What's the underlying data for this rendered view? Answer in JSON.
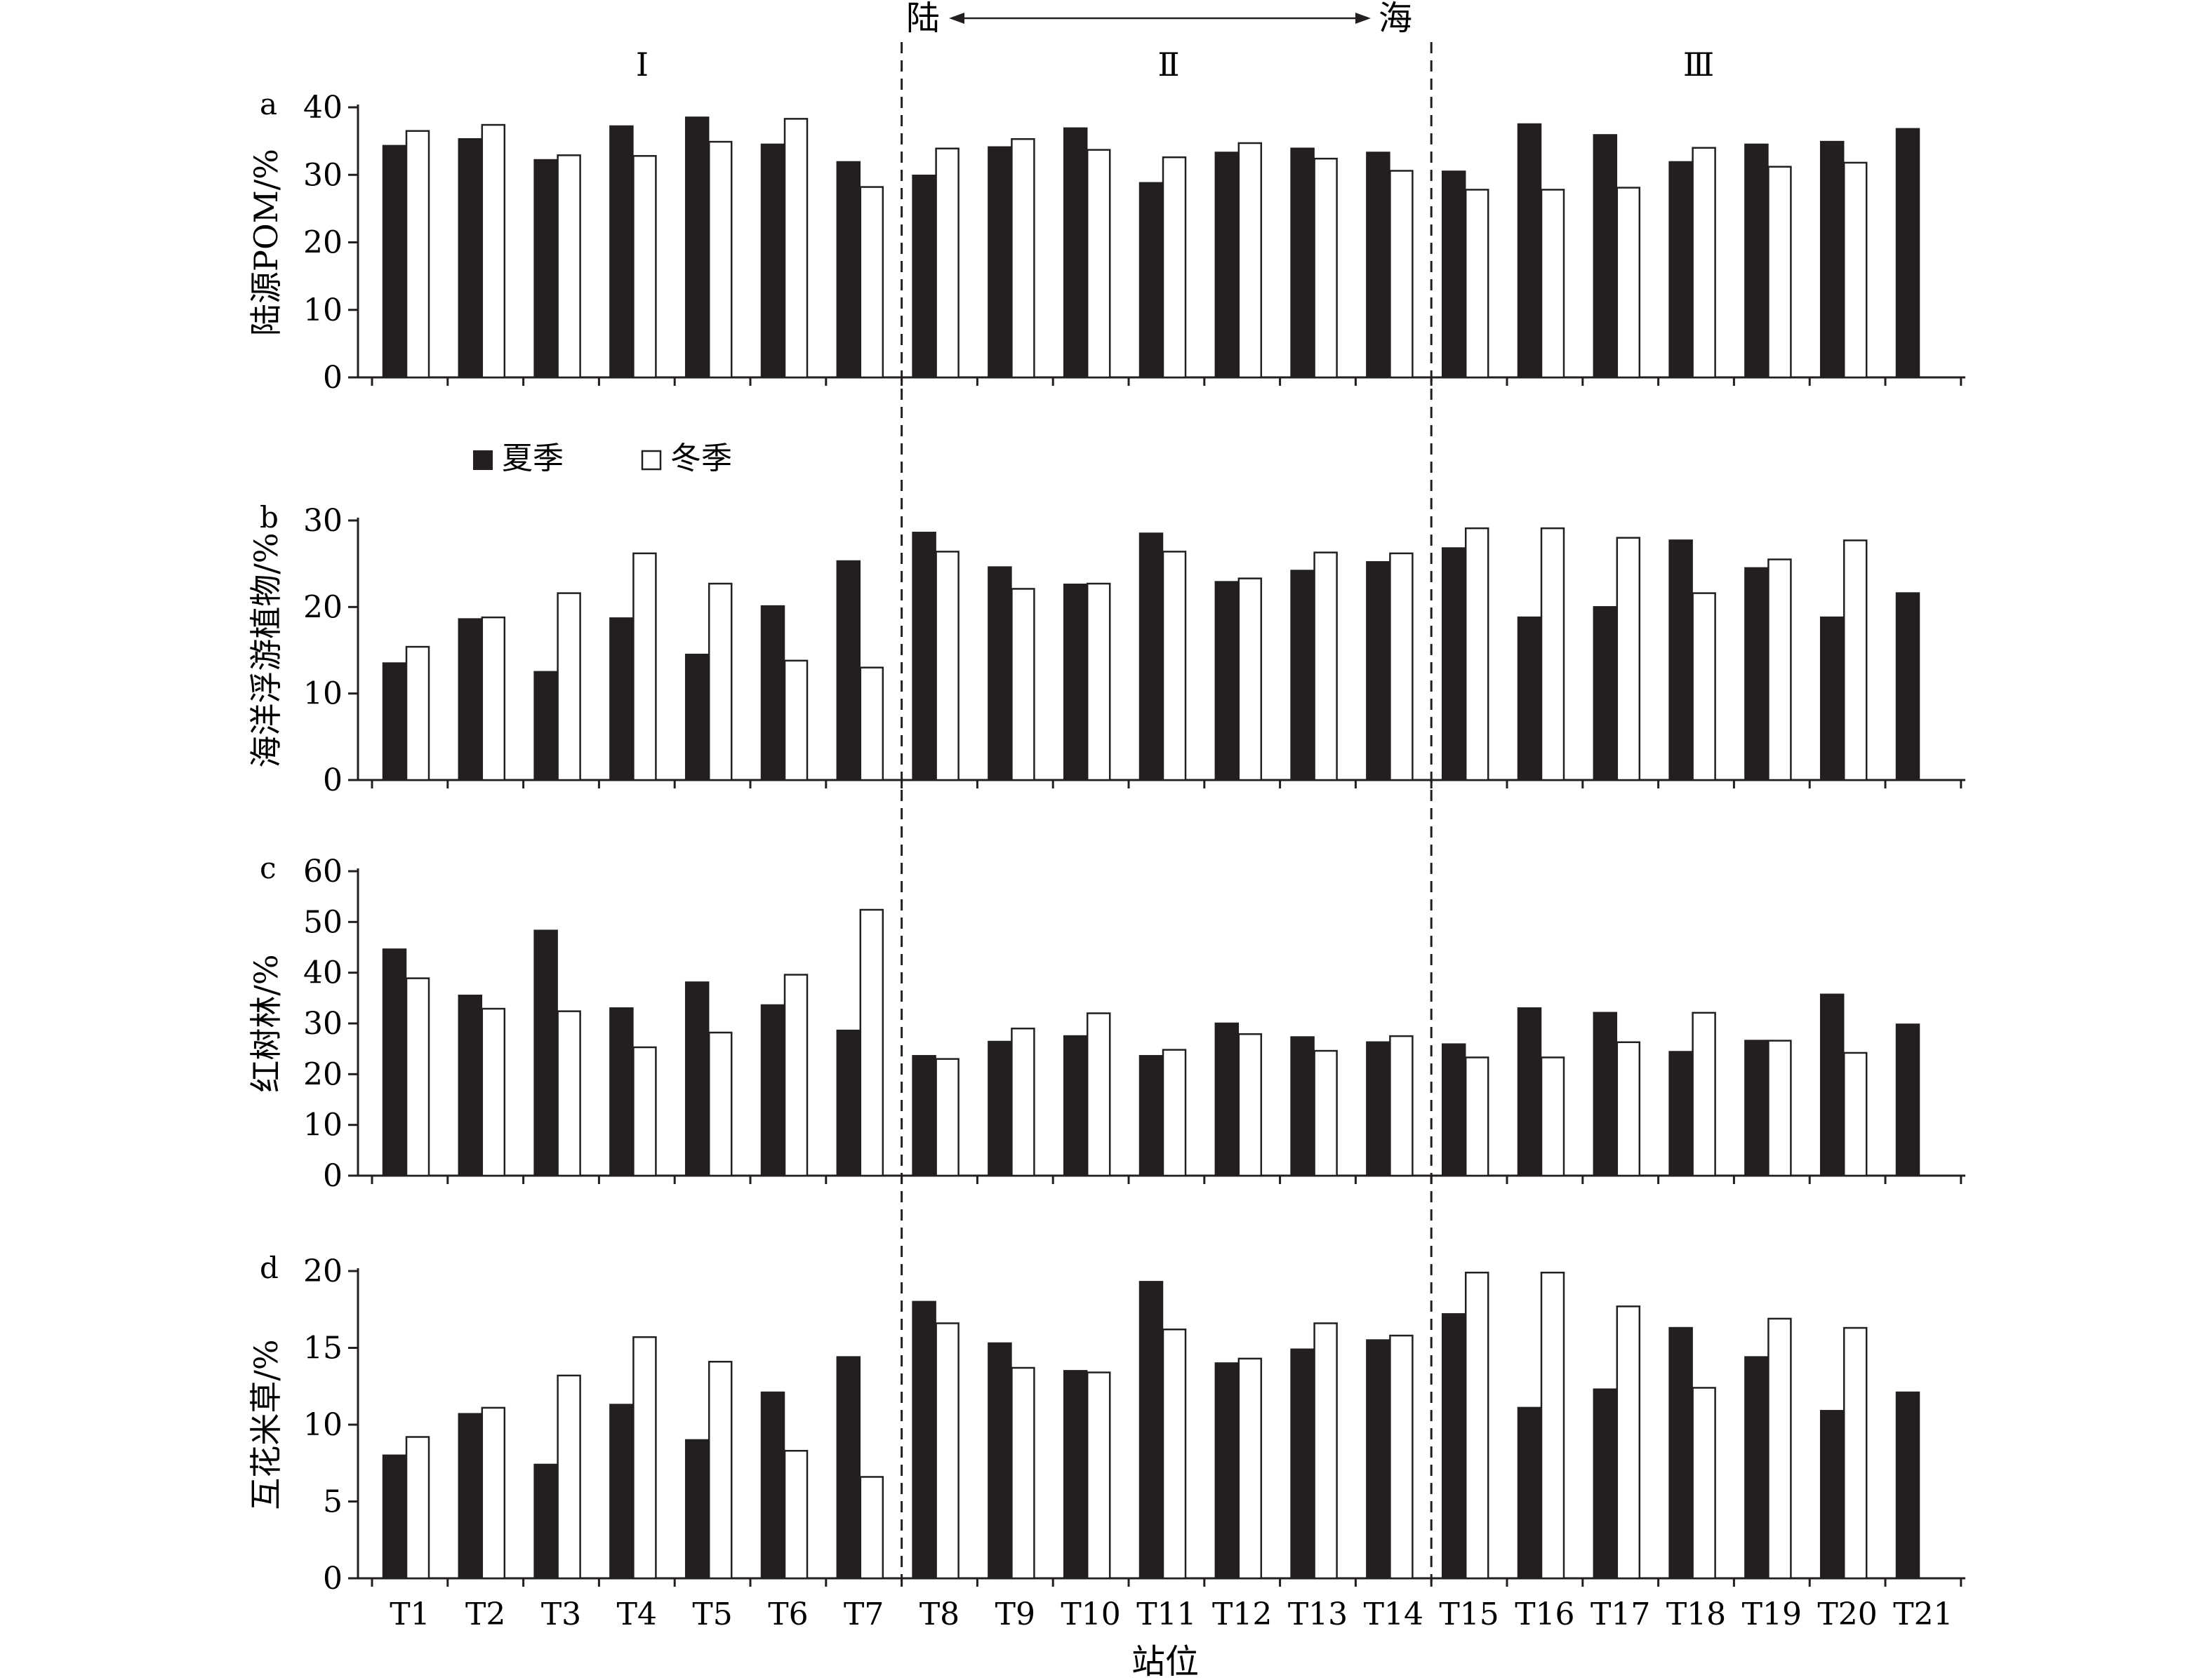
{
  "figure": {
    "x_axis_label": "站位",
    "land_label": "陆",
    "sea_label": "海",
    "zones": [
      "Ⅰ",
      "Ⅱ",
      "Ⅲ"
    ],
    "legend": [
      "夏季",
      "冬季"
    ]
  },
  "chart_data": [
    {
      "type": "bar",
      "panel_letter": "a",
      "ylabel": "陆源POM/%",
      "ylim": [
        0,
        40
      ],
      "yticks": [
        0,
        10,
        20,
        30,
        40
      ],
      "categories": [
        "T1",
        "T2",
        "T3",
        "T4",
        "T5",
        "T6",
        "T7",
        "T8",
        "T9",
        "T10",
        "T11",
        "T12",
        "T13",
        "T14",
        "T15",
        "T16",
        "T17",
        "T18",
        "T19",
        "T20",
        "T21"
      ],
      "series": [
        {
          "name": "夏季",
          "color": "#231f20",
          "values": [
            34.3,
            35.3,
            32.2,
            37.2,
            38.5,
            34.5,
            31.9,
            29.9,
            34.1,
            36.9,
            28.8,
            33.3,
            33.9,
            33.3,
            30.5,
            37.5,
            35.9,
            31.9,
            34.5,
            34.9,
            36.8
          ]
        },
        {
          "name": "冬季",
          "color": "#ffffff",
          "values": [
            36.5,
            37.4,
            32.9,
            32.8,
            34.9,
            38.3,
            28.2,
            33.9,
            35.3,
            33.7,
            32.6,
            34.7,
            32.4,
            30.6,
            27.8,
            27.8,
            28.1,
            34.0,
            31.2,
            31.8,
            null
          ]
        }
      ]
    },
    {
      "type": "bar",
      "panel_letter": "b",
      "ylabel": "海洋浮游植物/%",
      "ylim": [
        0,
        30
      ],
      "yticks": [
        0,
        10,
        20,
        30
      ],
      "categories": [
        "T1",
        "T2",
        "T3",
        "T4",
        "T5",
        "T6",
        "T7",
        "T8",
        "T9",
        "T10",
        "T11",
        "T12",
        "T13",
        "T14",
        "T15",
        "T16",
        "T17",
        "T18",
        "T19",
        "T20",
        "T21"
      ],
      "series": [
        {
          "name": "夏季",
          "color": "#231f20",
          "values": [
            13.5,
            18.6,
            12.5,
            18.7,
            14.5,
            20.1,
            25.3,
            28.6,
            24.6,
            22.6,
            28.5,
            22.9,
            24.2,
            25.2,
            26.8,
            18.8,
            20.0,
            27.7,
            24.5,
            18.8,
            21.6
          ]
        },
        {
          "name": "冬季",
          "color": "#ffffff",
          "values": [
            15.4,
            18.8,
            21.6,
            26.2,
            22.7,
            13.8,
            13.0,
            26.4,
            22.1,
            22.7,
            26.4,
            23.3,
            26.3,
            26.2,
            29.1,
            29.1,
            28.0,
            21.6,
            25.5,
            27.7,
            null
          ]
        }
      ]
    },
    {
      "type": "bar",
      "panel_letter": "c",
      "ylabel": "红树林/%",
      "ylim": [
        0,
        60
      ],
      "yticks": [
        0,
        10,
        20,
        30,
        40,
        50,
        60
      ],
      "categories": [
        "T1",
        "T2",
        "T3",
        "T4",
        "T5",
        "T6",
        "T7",
        "T8",
        "T9",
        "T10",
        "T11",
        "T12",
        "T13",
        "T14",
        "T15",
        "T16",
        "T17",
        "T18",
        "T19",
        "T20",
        "T21"
      ],
      "series": [
        {
          "name": "夏季",
          "color": "#231f20",
          "values": [
            44.6,
            35.5,
            48.3,
            33.0,
            38.1,
            33.6,
            28.6,
            23.6,
            26.4,
            27.5,
            23.6,
            30.0,
            27.3,
            26.3,
            25.9,
            33.0,
            32.1,
            24.4,
            26.6,
            35.7,
            29.8
          ]
        },
        {
          "name": "冬季",
          "color": "#ffffff",
          "values": [
            38.9,
            32.9,
            32.4,
            25.3,
            28.2,
            39.6,
            52.4,
            23.0,
            29.0,
            32.0,
            24.8,
            27.9,
            24.6,
            27.5,
            23.3,
            23.3,
            26.3,
            32.1,
            26.6,
            24.2,
            null
          ]
        }
      ]
    },
    {
      "type": "bar",
      "panel_letter": "d",
      "ylabel": "互花米草/%",
      "ylim": [
        0,
        20
      ],
      "yticks": [
        0,
        5,
        10,
        15,
        20
      ],
      "categories": [
        "T1",
        "T2",
        "T3",
        "T4",
        "T5",
        "T6",
        "T7",
        "T8",
        "T9",
        "T10",
        "T11",
        "T12",
        "T13",
        "T14",
        "T15",
        "T16",
        "T17",
        "T18",
        "T19",
        "T20",
        "T21"
      ],
      "series": [
        {
          "name": "夏季",
          "color": "#231f20",
          "values": [
            8.0,
            10.7,
            7.4,
            11.3,
            9.0,
            12.1,
            14.4,
            18.0,
            15.3,
            13.5,
            19.3,
            14.0,
            14.9,
            15.5,
            17.2,
            11.1,
            12.3,
            16.3,
            14.4,
            10.9,
            12.1
          ]
        },
        {
          "name": "冬季",
          "color": "#ffffff",
          "values": [
            9.2,
            11.1,
            13.2,
            15.7,
            14.1,
            8.3,
            6.6,
            16.6,
            13.7,
            13.4,
            16.2,
            14.3,
            16.6,
            15.8,
            19.9,
            19.9,
            17.7,
            12.4,
            16.9,
            16.3,
            null
          ]
        }
      ]
    }
  ]
}
